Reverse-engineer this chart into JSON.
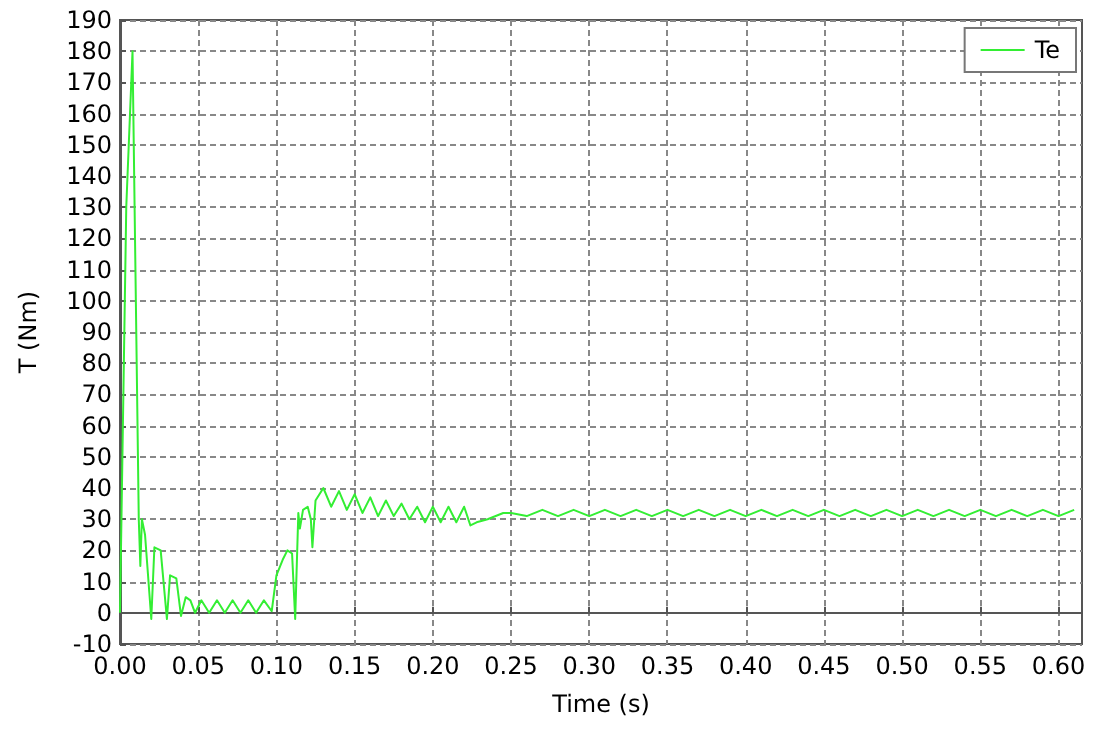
{
  "chart_data": {
    "type": "line",
    "xlabel": "Time (s)",
    "ylabel": "T (Nm)",
    "legend": "top right",
    "grid": true,
    "marker": "none",
    "line_style": "solid",
    "xlim": [
      0,
      0.615
    ],
    "ylim": [
      -10,
      190
    ],
    "xticks": [
      {
        "value": 0,
        "label": "0.00"
      },
      0.05,
      {
        "value": 0.1,
        "label": "0.10"
      },
      0.15,
      {
        "value": 0.2,
        "label": "0.20"
      },
      0.25,
      {
        "value": 0.3,
        "label": "0.30"
      },
      0.35,
      {
        "value": 0.4,
        "label": "0.40"
      },
      0.45,
      {
        "value": 0.5,
        "label": "0.50"
      },
      0.55,
      {
        "value": 0.6,
        "label": "0.60"
      }
    ],
    "yticks": [
      -10,
      0,
      10,
      20,
      30,
      40,
      50,
      60,
      70,
      80,
      90,
      100,
      110,
      120,
      130,
      140,
      150,
      160,
      170,
      180,
      190
    ],
    "series": [
      {
        "name": "Te",
        "color": "#33ee33",
        "x": [
          0,
          0.004,
          0.008,
          0.012,
          0.013,
          0.014,
          0.016,
          0.02,
          0.022,
          0.026,
          0.03,
          0.032,
          0.036,
          0.039,
          0.042,
          0.045,
          0.048,
          0.052,
          0.057,
          0.062,
          0.067,
          0.072,
          0.077,
          0.082,
          0.087,
          0.092,
          0.097,
          0.1,
          0.104,
          0.107,
          0.11,
          0.112,
          0.114,
          0.115,
          0.117,
          0.12,
          0.122,
          0.123,
          0.125,
          0.13,
          0.135,
          0.14,
          0.145,
          0.15,
          0.155,
          0.16,
          0.165,
          0.17,
          0.175,
          0.18,
          0.185,
          0.19,
          0.195,
          0.2,
          0.205,
          0.21,
          0.215,
          0.22,
          0.224,
          0.228,
          0.235,
          0.245,
          0.25,
          0.26,
          0.27,
          0.28,
          0.29,
          0.3,
          0.31,
          0.32,
          0.33,
          0.34,
          0.35,
          0.36,
          0.37,
          0.38,
          0.39,
          0.4,
          0.41,
          0.42,
          0.43,
          0.44,
          0.45,
          0.46,
          0.47,
          0.48,
          0.49,
          0.5,
          0.51,
          0.52,
          0.53,
          0.54,
          0.55,
          0.56,
          0.57,
          0.58,
          0.59,
          0.6,
          0.61
        ],
        "values": [
          0,
          130,
          180,
          30,
          15,
          30,
          25,
          -2,
          21,
          20,
          -2,
          12,
          11,
          -1,
          5,
          4,
          0,
          4,
          0,
          4,
          0,
          4,
          0,
          4,
          0,
          4,
          0.5,
          12,
          17,
          20,
          19,
          -2,
          32,
          27,
          33,
          34,
          30,
          21,
          36,
          40,
          34,
          39,
          33,
          38,
          32,
          37,
          31,
          36,
          31,
          35,
          30,
          34,
          29,
          34,
          29,
          34,
          29,
          34,
          28,
          29,
          30,
          32,
          32,
          31,
          33,
          31,
          33,
          31,
          33,
          31,
          33,
          31,
          33,
          31,
          33,
          31,
          33,
          31,
          33,
          31,
          33,
          31,
          33,
          31,
          33,
          31,
          33,
          31,
          33,
          31,
          33,
          31,
          33,
          31,
          33,
          31,
          33,
          31,
          33
        ]
      }
    ]
  }
}
